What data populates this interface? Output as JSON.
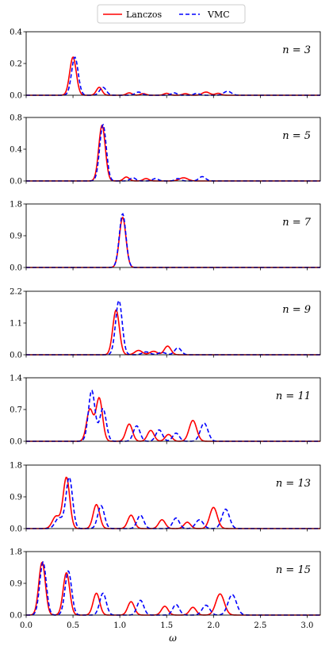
{
  "legend": {
    "position": "top-center",
    "entries": [
      {
        "label": "Lanczos",
        "color": "#ff0000",
        "style": "solid"
      },
      {
        "label": "VMC",
        "color": "#0000ff",
        "style": "dashed"
      }
    ]
  },
  "xlabel": "ω",
  "x_ticks": [
    0.0,
    0.5,
    1.0,
    1.5,
    2.0,
    2.5,
    3.0
  ],
  "x_tick_labels": [
    "0.0",
    "0.5",
    "1.0",
    "1.5",
    "2.0",
    "2.5",
    "3.0"
  ],
  "xlim": [
    0.0,
    3.14
  ],
  "chart_data": [
    {
      "type": "line",
      "label": "n = 3",
      "ylim": [
        0,
        0.4
      ],
      "y_ticks": [
        0.0,
        0.2,
        0.4
      ],
      "y_tick_labels": [
        "0.0",
        "0.2",
        "0.4"
      ],
      "series": [
        {
          "name": "Lanczos",
          "peaks": [
            [
              0.5,
              0.24,
              0.035
            ],
            [
              0.78,
              0.05,
              0.03
            ],
            [
              1.1,
              0.015,
              0.03
            ],
            [
              1.25,
              0.01,
              0.03
            ],
            [
              1.5,
              0.012,
              0.03
            ],
            [
              1.7,
              0.01,
              0.03
            ],
            [
              1.92,
              0.02,
              0.04
            ],
            [
              2.05,
              0.012,
              0.03
            ]
          ]
        },
        {
          "name": "VMC",
          "peaks": [
            [
              0.52,
              0.24,
              0.035
            ],
            [
              0.82,
              0.05,
              0.035
            ],
            [
              1.2,
              0.02,
              0.035
            ],
            [
              1.58,
              0.015,
              0.03
            ],
            [
              1.82,
              0.012,
              0.03
            ],
            [
              2.15,
              0.025,
              0.04
            ]
          ]
        }
      ]
    },
    {
      "type": "line",
      "label": "n = 5",
      "ylim": [
        0,
        0.8
      ],
      "y_ticks": [
        0.0,
        0.4,
        0.8
      ],
      "y_tick_labels": [
        "0.0",
        "0.4",
        "0.8"
      ],
      "series": [
        {
          "name": "Lanczos",
          "peaks": [
            [
              0.81,
              0.7,
              0.035
            ],
            [
              1.07,
              0.05,
              0.03
            ],
            [
              1.28,
              0.03,
              0.03
            ],
            [
              1.68,
              0.04,
              0.045
            ]
          ]
        },
        {
          "name": "VMC",
          "peaks": [
            [
              0.82,
              0.71,
              0.035
            ],
            [
              1.14,
              0.04,
              0.03
            ],
            [
              1.38,
              0.03,
              0.03
            ],
            [
              1.62,
              0.03,
              0.03
            ],
            [
              1.88,
              0.055,
              0.035
            ]
          ]
        }
      ]
    },
    {
      "type": "line",
      "label": "n = 7",
      "ylim": [
        0,
        1.8
      ],
      "y_ticks": [
        0.0,
        0.9,
        1.8
      ],
      "y_tick_labels": [
        "0.0",
        "0.9",
        "1.8"
      ],
      "series": [
        {
          "name": "Lanczos",
          "peaks": [
            [
              1.03,
              1.42,
              0.035
            ]
          ]
        },
        {
          "name": "VMC",
          "peaks": [
            [
              1.03,
              1.52,
              0.035
            ]
          ]
        }
      ]
    },
    {
      "type": "line",
      "label": "n = 9",
      "ylim": [
        0,
        2.2
      ],
      "y_ticks": [
        0.0,
        1.1,
        2.2
      ],
      "y_tick_labels": [
        "0.0",
        "1.1",
        "2.2"
      ],
      "series": [
        {
          "name": "Lanczos",
          "peaks": [
            [
              0.96,
              1.55,
              0.035
            ],
            [
              1.2,
              0.15,
              0.04
            ],
            [
              1.36,
              0.12,
              0.04
            ],
            [
              1.51,
              0.3,
              0.035
            ]
          ]
        },
        {
          "name": "VMC",
          "peaks": [
            [
              0.99,
              1.88,
              0.035
            ],
            [
              1.28,
              0.1,
              0.04
            ],
            [
              1.45,
              0.08,
              0.04
            ],
            [
              1.62,
              0.24,
              0.035
            ]
          ]
        }
      ]
    },
    {
      "type": "line",
      "label": "n = 11",
      "ylim": [
        0,
        1.4
      ],
      "y_ticks": [
        0.0,
        0.7,
        1.4
      ],
      "y_tick_labels": [
        "0.0",
        "0.7",
        "1.4"
      ],
      "series": [
        {
          "name": "Lanczos",
          "peaks": [
            [
              0.68,
              0.7,
              0.035
            ],
            [
              0.78,
              0.95,
              0.035
            ],
            [
              1.1,
              0.38,
              0.035
            ],
            [
              1.33,
              0.24,
              0.035
            ],
            [
              1.52,
              0.15,
              0.035
            ],
            [
              1.78,
              0.46,
              0.04
            ]
          ]
        },
        {
          "name": "VMC",
          "peaks": [
            [
              0.7,
              1.12,
              0.035
            ],
            [
              0.82,
              0.72,
              0.035
            ],
            [
              1.18,
              0.34,
              0.035
            ],
            [
              1.42,
              0.25,
              0.035
            ],
            [
              1.6,
              0.18,
              0.035
            ],
            [
              1.9,
              0.4,
              0.04
            ]
          ]
        }
      ]
    },
    {
      "type": "line",
      "label": "n = 13",
      "ylim": [
        0,
        1.8
      ],
      "y_ticks": [
        0.0,
        0.9,
        1.8
      ],
      "y_tick_labels": [
        "0.0",
        "0.9",
        "1.8"
      ],
      "series": [
        {
          "name": "Lanczos",
          "peaks": [
            [
              0.32,
              0.35,
              0.04
            ],
            [
              0.43,
              1.45,
              0.035
            ],
            [
              0.75,
              0.68,
              0.035
            ],
            [
              1.12,
              0.38,
              0.035
            ],
            [
              1.45,
              0.25,
              0.035
            ],
            [
              1.72,
              0.18,
              0.035
            ],
            [
              2.0,
              0.6,
              0.04
            ]
          ]
        },
        {
          "name": "VMC",
          "peaks": [
            [
              0.35,
              0.3,
              0.04
            ],
            [
              0.46,
              1.45,
              0.035
            ],
            [
              0.8,
              0.65,
              0.035
            ],
            [
              1.22,
              0.38,
              0.035
            ],
            [
              1.6,
              0.3,
              0.035
            ],
            [
              1.85,
              0.25,
              0.04
            ],
            [
              2.13,
              0.55,
              0.04
            ]
          ]
        }
      ]
    },
    {
      "type": "line",
      "label": "n = 15",
      "ylim": [
        0,
        1.8
      ],
      "y_ticks": [
        0.0,
        0.9,
        1.8
      ],
      "y_tick_labels": [
        "0.0",
        "0.9",
        "1.8"
      ],
      "series": [
        {
          "name": "Lanczos",
          "peaks": [
            [
              0.17,
              1.5,
              0.035
            ],
            [
              0.43,
              1.2,
              0.035
            ],
            [
              0.75,
              0.62,
              0.035
            ],
            [
              1.12,
              0.38,
              0.035
            ],
            [
              1.48,
              0.25,
              0.035
            ],
            [
              1.78,
              0.22,
              0.035
            ],
            [
              2.07,
              0.6,
              0.045
            ]
          ]
        },
        {
          "name": "VMC",
          "peaks": [
            [
              0.18,
              1.5,
              0.035
            ],
            [
              0.45,
              1.25,
              0.035
            ],
            [
              0.82,
              0.62,
              0.035
            ],
            [
              1.22,
              0.42,
              0.035
            ],
            [
              1.6,
              0.3,
              0.035
            ],
            [
              1.92,
              0.28,
              0.04
            ],
            [
              2.2,
              0.58,
              0.045
            ]
          ]
        }
      ]
    }
  ]
}
